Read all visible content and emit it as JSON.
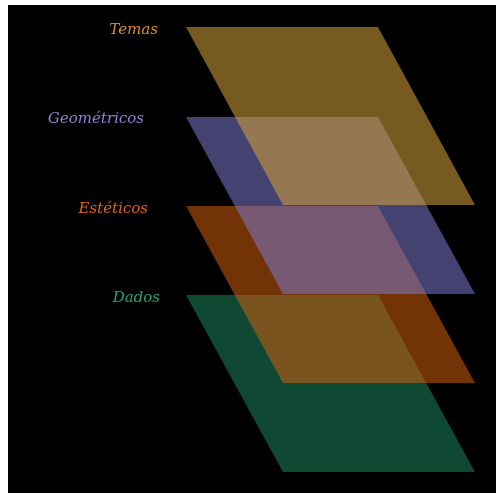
{
  "background_color": "#000000",
  "layers": [
    {
      "id": "dados",
      "label": "Dados",
      "color": "#1a7a55",
      "label_color": "#1fa67a",
      "opacity": 0.6
    },
    {
      "id": "esteticos",
      "label": "Estéticos",
      "color": "#d05c0c",
      "label_color": "#e0651a",
      "opacity": 0.55
    },
    {
      "id": "geometricos",
      "label": "Geométricos",
      "color": "#7b78cc",
      "label_color": "#8a86d8",
      "opacity": 0.55
    },
    {
      "id": "temas",
      "label": "Temas",
      "color": "#d8a43a",
      "label_color": "#d8902f",
      "opacity": 0.55
    }
  ]
}
